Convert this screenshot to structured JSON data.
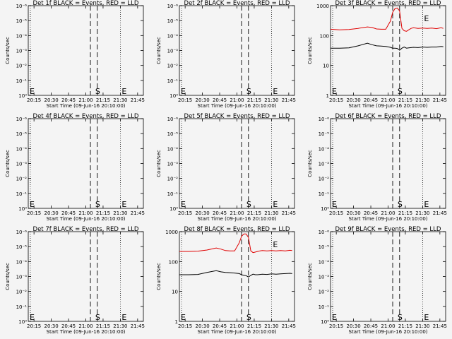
{
  "chart_data": [
    {
      "type": "line",
      "title": "Det 1f BLACK = Events, RED = LLD",
      "ylabel": "Counts/sec",
      "xlabel": "Start Time (09-Jun-16 20:10:00)",
      "xticks": [
        "20:15",
        "20:30",
        "20:45",
        "21:00",
        "21:15",
        "21:30",
        "21:45"
      ],
      "yticks": [
        "10⁰",
        "10⁻¹",
        "10⁻²",
        "10⁻³",
        "10⁻⁴",
        "10⁻⁵",
        "10⁻⁶"
      ],
      "yscale": "log",
      "ylim": [
        0,
        -6
      ],
      "dotted_lines": [
        "20:10",
        "21:30"
      ],
      "dashed_lines": [
        "21:04",
        "21:10"
      ],
      "markers": [
        {
          "text": "E",
          "at": "20:10"
        },
        {
          "text": "S",
          "at": "21:07"
        },
        {
          "text": "E",
          "at": "21:30"
        }
      ],
      "series": []
    },
    {
      "type": "line",
      "title": "Det 2f BLACK = Events, RED = LLD",
      "ylabel": "Counts/sec",
      "xlabel": "Start Time (09-Jun-16 20:10:00)",
      "xticks": [
        "20:15",
        "20:30",
        "20:45",
        "21:00",
        "21:15",
        "21:30",
        "21:45"
      ],
      "yticks": [
        "10⁰",
        "10⁻¹",
        "10⁻²",
        "10⁻³",
        "10⁻⁴",
        "10⁻⁵",
        "10⁻⁶"
      ],
      "yscale": "log",
      "ylim": [
        0,
        -6
      ],
      "dotted_lines": [
        "20:10",
        "21:30"
      ],
      "dashed_lines": [
        "21:04",
        "21:10"
      ],
      "markers": [
        {
          "text": "E",
          "at": "20:10"
        },
        {
          "text": "S",
          "at": "21:07"
        },
        {
          "text": "E",
          "at": "21:30"
        }
      ],
      "series": []
    },
    {
      "type": "line",
      "title": "Det 3f BLACK = Events, RED = LLD",
      "ylabel": "Counts/sec",
      "xlabel": "Start Time (09-Jun-16 20:10:00)",
      "xticks": [
        "20:15",
        "20:30",
        "20:45",
        "21:00",
        "21:15",
        "21:30",
        "21:45"
      ],
      "yticks": [
        "1",
        "10",
        "100",
        "1000"
      ],
      "yscale": "log",
      "ylim": [
        0,
        3.08
      ],
      "dotted_lines": [
        "20:10",
        "21:30"
      ],
      "dashed_lines": [
        "21:04",
        "21:10"
      ],
      "markers": [
        {
          "text": "E",
          "at": "20:10"
        },
        {
          "text": "S",
          "at": "21:07"
        },
        {
          "text": "E",
          "at": "21:30"
        }
      ],
      "series": [
        {
          "color": "#e00000",
          "x_min": [
            0,
            8,
            16,
            24,
            32,
            36,
            40,
            44,
            48,
            52,
            54,
            56,
            58,
            60,
            62,
            64,
            66,
            68,
            70,
            72,
            76,
            80,
            84,
            88,
            92,
            96,
            98
          ],
          "y": [
            2.27,
            2.25,
            2.26,
            2.3,
            2.35,
            2.33,
            2.28,
            2.27,
            2.27,
            2.55,
            2.85,
            2.98,
            3.0,
            2.9,
            2.3,
            2.22,
            2.2,
            2.25,
            2.3,
            2.32,
            2.3,
            2.31,
            2.3,
            2.31,
            2.29,
            2.32,
            2.3
          ]
        },
        {
          "color": "#000000",
          "x_min": [
            0,
            8,
            16,
            24,
            32,
            36,
            40,
            44,
            48,
            52,
            54,
            56,
            58,
            60,
            62,
            64,
            66,
            68,
            70,
            72,
            76,
            80,
            84,
            88,
            92,
            96,
            98
          ],
          "y": [
            1.62,
            1.62,
            1.63,
            1.7,
            1.79,
            1.74,
            1.7,
            1.69,
            1.68,
            1.65,
            1.62,
            1.62,
            1.61,
            1.55,
            1.62,
            1.66,
            1.62,
            1.63,
            1.64,
            1.65,
            1.64,
            1.66,
            1.65,
            1.66,
            1.66,
            1.68,
            1.67
          ]
        }
      ]
    },
    {
      "type": "line",
      "title": "Det 4f BLACK = Events, RED = LLD",
      "ylabel": "Counts/sec",
      "xlabel": "Start Time (09-Jun-16 20:10:00)",
      "xticks": [
        "20:15",
        "20:30",
        "20:45",
        "21:00",
        "21:15",
        "21:30",
        "21:45"
      ],
      "yticks": [
        "10⁰",
        "10⁻¹",
        "10⁻²",
        "10⁻³",
        "10⁻⁴",
        "10⁻⁵",
        "10⁻⁶"
      ],
      "yscale": "log",
      "ylim": [
        0,
        -6
      ],
      "dotted_lines": [
        "20:10",
        "21:30"
      ],
      "dashed_lines": [
        "21:04",
        "21:10"
      ],
      "markers": [
        {
          "text": "E",
          "at": "20:10"
        },
        {
          "text": "S",
          "at": "21:07"
        },
        {
          "text": "E",
          "at": "21:30"
        }
      ],
      "series": []
    },
    {
      "type": "line",
      "title": "Det 5f BLACK = Events, RED = LLD",
      "ylabel": "Counts/sec",
      "xlabel": "Start Time (09-Jun-16 20:10:00)",
      "xticks": [
        "20:15",
        "20:30",
        "20:45",
        "21:00",
        "21:15",
        "21:30",
        "21:45"
      ],
      "yticks": [
        "10⁰",
        "10⁻¹",
        "10⁻²",
        "10⁻³",
        "10⁻⁴",
        "10⁻⁵",
        "10⁻⁶"
      ],
      "yscale": "log",
      "ylim": [
        0,
        -6
      ],
      "dotted_lines": [
        "20:10",
        "21:30"
      ],
      "dashed_lines": [
        "21:04",
        "21:10"
      ],
      "markers": [
        {
          "text": "E",
          "at": "20:10"
        },
        {
          "text": "S",
          "at": "21:07"
        },
        {
          "text": "E",
          "at": "21:30"
        }
      ],
      "series": []
    },
    {
      "type": "line",
      "title": "Det 6f BLACK = Events, RED = LLD",
      "ylabel": "Counts/sec",
      "xlabel": "Start Time (09-Jun-16 20:10:00)",
      "xticks": [
        "20:15",
        "20:30",
        "20:45",
        "21:00",
        "21:15",
        "21:30",
        "21:45"
      ],
      "yticks": [
        "10⁰",
        "10⁻¹",
        "10⁻²",
        "10⁻³",
        "10⁻⁴",
        "10⁻⁵",
        "10⁻⁶"
      ],
      "yscale": "log",
      "ylim": [
        0,
        -6
      ],
      "dotted_lines": [
        "20:10",
        "21:30"
      ],
      "dashed_lines": [
        "21:04",
        "21:10"
      ],
      "markers": [
        {
          "text": "E",
          "at": "20:10"
        },
        {
          "text": "S",
          "at": "21:07"
        },
        {
          "text": "E",
          "at": "21:30"
        }
      ],
      "series": []
    },
    {
      "type": "line",
      "title": "Det 7f BLACK = Events, RED = LLD",
      "ylabel": "Counts/sec",
      "xlabel": "Start Time (09-Jun-16 20:10:00)",
      "xticks": [
        "20:15",
        "20:30",
        "20:45",
        "21:00",
        "21:15",
        "21:30",
        "21:45"
      ],
      "yticks": [
        "10⁰",
        "10⁻¹",
        "10⁻²",
        "10⁻³",
        "10⁻⁴",
        "10⁻⁵",
        "10⁻⁶"
      ],
      "yscale": "log",
      "ylim": [
        0,
        -6
      ],
      "dotted_lines": [
        "20:10",
        "21:30"
      ],
      "dashed_lines": [
        "21:04",
        "21:10"
      ],
      "markers": [
        {
          "text": "E",
          "at": "20:10"
        },
        {
          "text": "S",
          "at": "21:07"
        },
        {
          "text": "E",
          "at": "21:30"
        }
      ],
      "series": []
    },
    {
      "type": "line",
      "title": "Det 8f BLACK = Events, RED = LLD",
      "ylabel": "Counts/sec",
      "xlabel": "Start Time (09-Jun-16 20:10:00)",
      "xticks": [
        "20:15",
        "20:30",
        "20:45",
        "21:00",
        "21:15",
        "21:30",
        "21:45"
      ],
      "yticks": [
        "1",
        "10",
        "100",
        "1000"
      ],
      "yscale": "log",
      "ylim": [
        0,
        3.08
      ],
      "dotted_lines": [
        "20:10",
        "21:30"
      ],
      "dashed_lines": [
        "21:04",
        "21:10"
      ],
      "markers": [
        {
          "text": "E",
          "at": "20:10"
        },
        {
          "text": "S",
          "at": "21:07"
        },
        {
          "text": "E",
          "at": "21:30"
        }
      ],
      "series": [
        {
          "color": "#e00000",
          "x_min": [
            0,
            8,
            16,
            24,
            32,
            36,
            40,
            44,
            48,
            52,
            54,
            56,
            58,
            60,
            62,
            64,
            66,
            68,
            70,
            72,
            76,
            80,
            84,
            88,
            92,
            96,
            98
          ],
          "y": [
            2.4,
            2.4,
            2.41,
            2.45,
            2.52,
            2.48,
            2.43,
            2.42,
            2.42,
            2.7,
            2.92,
            3.0,
            3.0,
            2.88,
            2.42,
            2.36,
            2.38,
            2.4,
            2.42,
            2.43,
            2.42,
            2.43,
            2.42,
            2.43,
            2.42,
            2.44,
            2.43
          ]
        },
        {
          "color": "#000000",
          "x_min": [
            0,
            8,
            16,
            24,
            32,
            36,
            40,
            44,
            48,
            52,
            54,
            56,
            58,
            60,
            62,
            64,
            66,
            68,
            70,
            72,
            76,
            80,
            84,
            88,
            92,
            96,
            98
          ],
          "y": [
            1.6,
            1.6,
            1.61,
            1.68,
            1.74,
            1.7,
            1.68,
            1.67,
            1.66,
            1.64,
            1.6,
            1.58,
            1.57,
            1.52,
            1.58,
            1.62,
            1.6,
            1.6,
            1.61,
            1.62,
            1.61,
            1.63,
            1.62,
            1.63,
            1.64,
            1.65,
            1.64
          ]
        }
      ]
    },
    {
      "type": "line",
      "title": "Det 9f BLACK = Events, RED = LLD",
      "ylabel": "Counts/sec",
      "xlabel": "Start Time (09-Jun-16 20:10:00)",
      "xticks": [
        "20:15",
        "20:30",
        "20:45",
        "21:00",
        "21:15",
        "21:30",
        "21:45"
      ],
      "yticks": [
        "10⁰",
        "10⁻¹",
        "10⁻²",
        "10⁻³",
        "10⁻⁴",
        "10⁻⁵",
        "10⁻⁶"
      ],
      "yscale": "log",
      "ylim": [
        0,
        -6
      ],
      "dotted_lines": [
        "20:10",
        "21:30"
      ],
      "dashed_lines": [
        "21:04",
        "21:10"
      ],
      "markers": [
        {
          "text": "E",
          "at": "20:10"
        },
        {
          "text": "S",
          "at": "21:07"
        },
        {
          "text": "E",
          "at": "21:30"
        }
      ],
      "series": []
    }
  ]
}
